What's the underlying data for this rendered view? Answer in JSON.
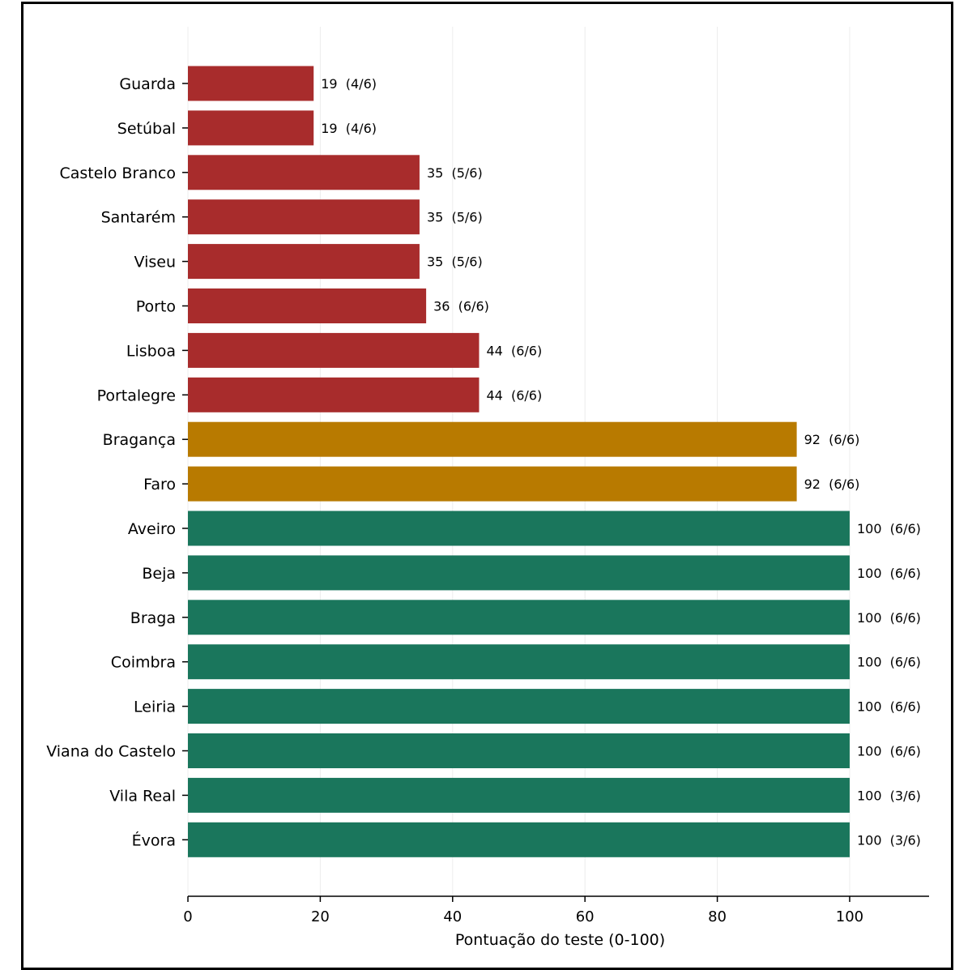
{
  "chart_data": {
    "type": "bar",
    "orientation": "horizontal",
    "xlabel": "Pontuação do teste (0-100)",
    "xlim": [
      0,
      112
    ],
    "xticks": [
      0,
      20,
      40,
      60,
      80,
      100
    ],
    "xtick_labels": [
      "0",
      "20",
      "40",
      "60",
      "80",
      "100"
    ],
    "grid": "vertical",
    "categories": [
      "Guarda",
      "Setúbal",
      "Castelo Branco",
      "Santarém",
      "Viseu",
      "Porto",
      "Lisboa",
      "Portalegre",
      "Bragança",
      "Faro",
      "Aveiro",
      "Beja",
      "Braga",
      "Coimbra",
      "Leiria",
      "Viana do Castelo",
      "Vila Real",
      "Évora"
    ],
    "values": [
      19,
      19,
      35,
      35,
      35,
      36,
      44,
      44,
      92,
      92,
      100,
      100,
      100,
      100,
      100,
      100,
      100,
      100
    ],
    "value_labels": [
      "19  (4/6)",
      "19  (4/6)",
      "35  (5/6)",
      "35  (5/6)",
      "35  (5/6)",
      "36  (6/6)",
      "44  (6/6)",
      "44  (6/6)",
      "92  (6/6)",
      "92  (6/6)",
      "100  (6/6)",
      "100  (6/6)",
      "100  (6/6)",
      "100  (6/6)",
      "100  (6/6)",
      "100  (6/6)",
      "100  (3/6)",
      "100  (3/6)"
    ],
    "colors": {
      "low": "#a82c2c",
      "mid": "#b87a00",
      "high": "#1a765c"
    },
    "bar_color_groups": [
      "low",
      "low",
      "low",
      "low",
      "low",
      "low",
      "low",
      "low",
      "mid",
      "mid",
      "high",
      "high",
      "high",
      "high",
      "high",
      "high",
      "high",
      "high"
    ]
  }
}
